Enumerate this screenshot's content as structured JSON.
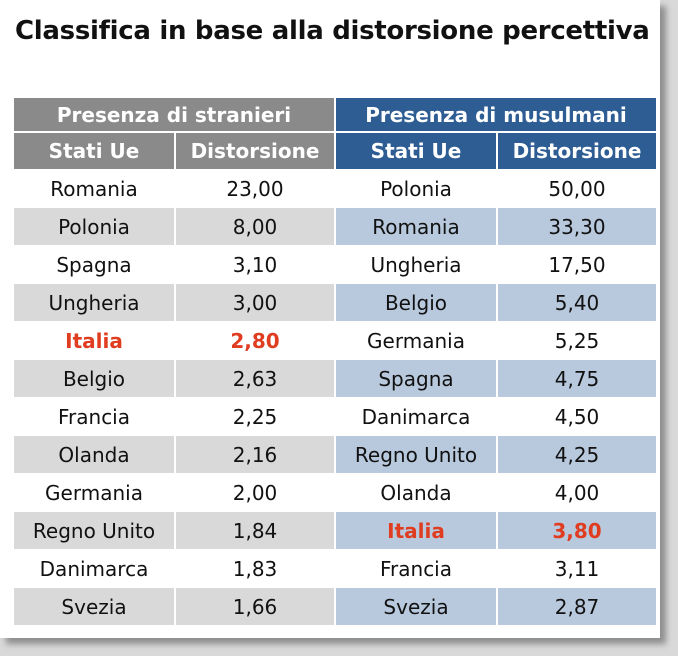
{
  "chart_data": {
    "type": "table",
    "title": "Classifica in base alla distorsione percettiva",
    "groups": [
      {
        "name": "Presenza di stranieri",
        "header_color": "#8a8a8a",
        "stripe_color": "#d9d9d9",
        "columns": [
          "Stati Ue",
          "Distorsione"
        ],
        "rows": [
          {
            "country": "Romania",
            "value": "23,00"
          },
          {
            "country": "Polonia",
            "value": "8,00"
          },
          {
            "country": "Spagna",
            "value": "3,10"
          },
          {
            "country": "Ungheria",
            "value": "3,00"
          },
          {
            "country": "Italia",
            "value": "2,80",
            "highlight": true
          },
          {
            "country": "Belgio",
            "value": "2,63"
          },
          {
            "country": "Francia",
            "value": "2,25"
          },
          {
            "country": "Olanda",
            "value": "2,16"
          },
          {
            "country": "Germania",
            "value": "2,00"
          },
          {
            "country": "Regno Unito",
            "value": "1,84"
          },
          {
            "country": "Danimarca",
            "value": "1,83"
          },
          {
            "country": "Svezia",
            "value": "1,66"
          }
        ]
      },
      {
        "name": "Presenza di musulmani",
        "header_color": "#2e5d94",
        "stripe_color": "#b8c8dd",
        "columns": [
          "Stati Ue",
          "Distorsione"
        ],
        "rows": [
          {
            "country": "Polonia",
            "value": "50,00"
          },
          {
            "country": "Romania",
            "value": "33,30"
          },
          {
            "country": "Ungheria",
            "value": "17,50"
          },
          {
            "country": "Belgio",
            "value": "5,40"
          },
          {
            "country": "Germania",
            "value": "5,25"
          },
          {
            "country": "Spagna",
            "value": "4,75"
          },
          {
            "country": "Danimarca",
            "value": "4,50"
          },
          {
            "country": "Regno Unito",
            "value": "4,25"
          },
          {
            "country": "Olanda",
            "value": "4,00"
          },
          {
            "country": "Italia",
            "value": "3,80",
            "highlight": true
          },
          {
            "country": "Francia",
            "value": "3,11"
          },
          {
            "country": "Svezia",
            "value": "2,87"
          }
        ]
      }
    ],
    "highlight_color": "#e03c1f"
  }
}
